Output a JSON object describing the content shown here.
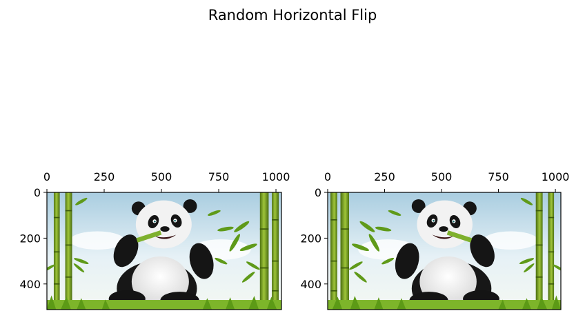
{
  "figure": {
    "title": "Random Horizontal Flip"
  },
  "chart_data": [
    {
      "type": "image",
      "panel": "original",
      "x_ticks": [
        0,
        250,
        500,
        750,
        1000
      ],
      "y_ticks": [
        0,
        200,
        400
      ],
      "x_axis_position": "top",
      "xlim": [
        0,
        1024
      ],
      "ylim": [
        512,
        0
      ],
      "image": {
        "flipped": false,
        "subject": "cartoon panda eating bamboo",
        "colors": {
          "sky": "#cfe4ee",
          "bamboo": "#6f9a1c",
          "grass": "#7db52a",
          "fur_black": "#161616",
          "fur_white": "#f2f2f2"
        }
      }
    },
    {
      "type": "image",
      "panel": "flipped",
      "x_ticks": [
        0,
        250,
        500,
        750,
        1000
      ],
      "y_ticks": [
        0,
        200,
        400
      ],
      "x_axis_position": "top",
      "xlim": [
        0,
        1024
      ],
      "ylim": [
        512,
        0
      ],
      "image": {
        "flipped": true,
        "subject": "cartoon panda eating bamboo",
        "colors": {
          "sky": "#cfe4ee",
          "bamboo": "#6f9a1c",
          "grass": "#7db52a",
          "fur_black": "#161616",
          "fur_white": "#f2f2f2"
        }
      }
    }
  ]
}
